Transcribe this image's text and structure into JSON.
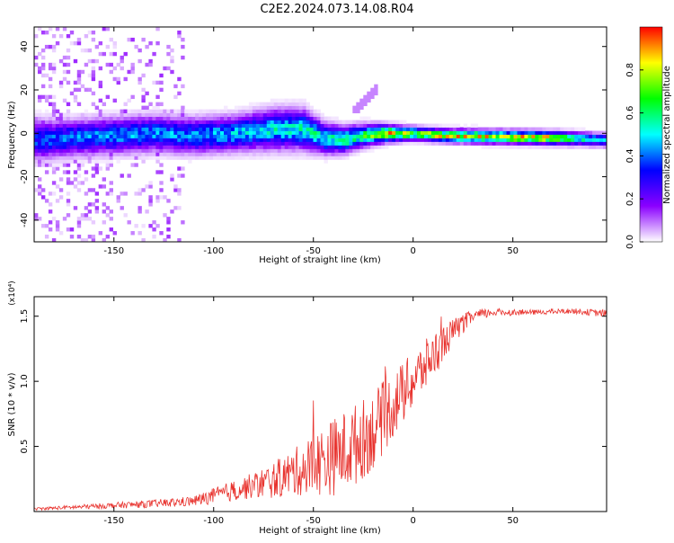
{
  "title": "C2E2.2024.073.14.08.R04",
  "colors": {
    "snr_line": "#e8332e",
    "axis": "#000000"
  },
  "chart_data": [
    {
      "type": "heatmap",
      "title": "C2E2.2024.073.14.08.R04",
      "xlabel": "Height of straight line (km)",
      "ylabel": "Frequency (Hz)",
      "xlim": [
        -190,
        97
      ],
      "ylim": [
        -50,
        49
      ],
      "xticks": [
        -150,
        -100,
        -50,
        0,
        50
      ],
      "yticks": [
        -40,
        -20,
        0,
        20,
        40
      ],
      "grid": false,
      "colorbar": {
        "label": "Normalized spectral amplitude",
        "range": [
          0,
          1
        ],
        "ticks": [
          "0.0",
          "0.2",
          "0.4",
          "0.6",
          "0.8"
        ],
        "colormap": [
          "#ffffff",
          "#8b00ff",
          "#0000ff",
          "#00ffff",
          "#00ff00",
          "#ffff00",
          "#ff0000"
        ]
      },
      "band_profile": [
        {
          "x": -190,
          "center": -3,
          "width": 9,
          "peak": 0.38
        },
        {
          "x": -170,
          "center": -2,
          "width": 8,
          "peak": 0.42
        },
        {
          "x": -150,
          "center": -1,
          "width": 8,
          "peak": 0.45
        },
        {
          "x": -130,
          "center": 0,
          "width": 8,
          "peak": 0.45
        },
        {
          "x": -110,
          "center": -1,
          "width": 8,
          "peak": 0.45
        },
        {
          "x": -90,
          "center": 0,
          "width": 8,
          "peak": 0.48
        },
        {
          "x": -70,
          "center": 2,
          "width": 9,
          "peak": 0.52
        },
        {
          "x": -55,
          "center": 2,
          "width": 9,
          "peak": 0.55
        },
        {
          "x": -45,
          "center": -2,
          "width": 7,
          "peak": 0.55
        },
        {
          "x": -35,
          "center": -3,
          "width": 6,
          "peak": 0.6
        },
        {
          "x": -25,
          "center": -1,
          "width": 5,
          "peak": 0.65
        },
        {
          "x": -15,
          "center": 0,
          "width": 4,
          "peak": 0.9
        },
        {
          "x": 0,
          "center": 0,
          "width": 3,
          "peak": 0.75
        },
        {
          "x": 15,
          "center": -1,
          "width": 3,
          "peak": 0.85
        },
        {
          "x": 40,
          "center": -1.5,
          "width": 3,
          "peak": 0.85
        },
        {
          "x": 70,
          "center": -2,
          "width": 3,
          "peak": 0.88
        },
        {
          "x": 85,
          "center": -2.5,
          "width": 3,
          "peak": 0.55
        },
        {
          "x": 97,
          "center": -3,
          "width": 3,
          "peak": 0.45
        }
      ]
    },
    {
      "type": "line",
      "xlabel": "Height of straight line (km)",
      "ylabel": "SNR (10 * v/v)",
      "scale_label": "(x10⁴)",
      "xlim": [
        -190,
        97
      ],
      "ylim": [
        0,
        1.65
      ],
      "xticks": [
        -150,
        -100,
        -50,
        0,
        50
      ],
      "yticks": [
        "0.5",
        "1.0",
        "1.5"
      ],
      "grid": false,
      "series": [
        {
          "color": "#e8332e",
          "x": [
            -190,
            -160,
            -130,
            -110,
            -100,
            -90,
            -80,
            -70,
            -60,
            -50,
            -40,
            -30,
            -20,
            -10,
            0,
            10,
            20,
            30,
            40,
            60,
            80,
            97
          ],
          "y": [
            0.02,
            0.04,
            0.06,
            0.08,
            0.12,
            0.16,
            0.2,
            0.24,
            0.3,
            0.36,
            0.42,
            0.5,
            0.62,
            0.82,
            1.0,
            1.2,
            1.38,
            1.5,
            1.53,
            1.53,
            1.54,
            1.52
          ],
          "noise": [
            0.01,
            0.02,
            0.03,
            0.04,
            0.06,
            0.08,
            0.1,
            0.14,
            0.18,
            0.24,
            0.3,
            0.32,
            0.3,
            0.26,
            0.22,
            0.18,
            0.1,
            0.05,
            0.03,
            0.02,
            0.02,
            0.03
          ]
        }
      ]
    }
  ]
}
